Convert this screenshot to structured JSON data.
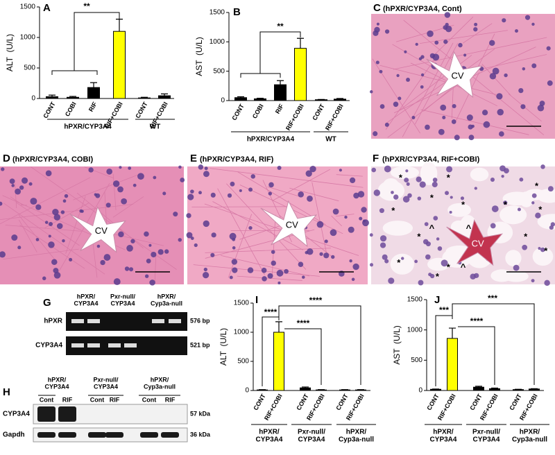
{
  "chart_data": [
    {
      "type": "bar",
      "panel": "A",
      "ylabel": "ALT  (U/L)",
      "ylim": [
        0,
        1500
      ],
      "yticks": [
        0,
        500,
        1000,
        1500
      ],
      "categories": [
        "CONT",
        "COBI",
        "RIF",
        "RIF+COBI",
        "CONT",
        "RIF+COBI"
      ],
      "values": [
        30,
        20,
        180,
        1100,
        10,
        45
      ],
      "errors": [
        25,
        15,
        80,
        200,
        10,
        30
      ],
      "colors": [
        "#000000",
        "#000000",
        "#000000",
        "#ffff00",
        "#000000",
        "#000000"
      ],
      "groups": [
        [
          "hPXR/CYP3A4"
        ],
        [
          "WT"
        ]
      ],
      "significance": [
        "**"
      ]
    },
    {
      "type": "bar",
      "panel": "B",
      "ylabel": "AST  (U/L)",
      "ylim": [
        0,
        1500
      ],
      "yticks": [
        0,
        500,
        1000,
        1500
      ],
      "categories": [
        "CONT",
        "COBI",
        "RIF",
        "RIF+COBI",
        "CONT",
        "RIF+COBI"
      ],
      "values": [
        50,
        30,
        270,
        890,
        15,
        25
      ],
      "errors": [
        15,
        10,
        70,
        170,
        5,
        10
      ],
      "colors": [
        "#000000",
        "#000000",
        "#000000",
        "#ffff00",
        "#000000",
        "#000000"
      ],
      "groups": [
        [
          "hPXR/CYP3A4"
        ],
        [
          "WT"
        ]
      ],
      "significance": [
        "**"
      ]
    },
    {
      "type": "bar",
      "panel": "I",
      "ylabel": "ALT  (U/L)",
      "ylim": [
        0,
        1500
      ],
      "yticks": [
        0,
        500,
        1000,
        1500
      ],
      "categories": [
        "CONT",
        "RIF+COBI",
        "CONT",
        "RIF+COBI",
        "CONT",
        "RIF+COBI"
      ],
      "values": [
        10,
        1000,
        45,
        10,
        10,
        10
      ],
      "errors": [
        5,
        180,
        15,
        5,
        5,
        5
      ],
      "colors": [
        "#000000",
        "#ffff00",
        "#000000",
        "#000000",
        "#000000",
        "#000000"
      ],
      "groups": [
        [
          "hPXR/",
          "CYP3A4"
        ],
        [
          "Pxr-null/",
          "CYP3A4"
        ],
        [
          "hPXR/",
          "Cyp3a-null"
        ]
      ],
      "significance": [
        "****",
        "****",
        "****"
      ]
    },
    {
      "type": "bar",
      "panel": "J",
      "ylabel": "AST  (U/L)",
      "ylim": [
        0,
        1500
      ],
      "yticks": [
        0,
        500,
        1000,
        1500
      ],
      "categories": [
        "CONT",
        "RIF+COBI",
        "CONT",
        "RIF+COBI",
        "CONT",
        "RIF+COBI"
      ],
      "values": [
        20,
        860,
        55,
        30,
        15,
        25
      ],
      "errors": [
        5,
        170,
        15,
        10,
        5,
        5
      ],
      "colors": [
        "#000000",
        "#ffff00",
        "#000000",
        "#000000",
        "#000000",
        "#000000"
      ],
      "groups": [
        [
          "hPXR/",
          "CYP3A4"
        ],
        [
          "Pxr-null/",
          "CYP3A4"
        ],
        [
          "hPXR/",
          "Cyp3a-null"
        ]
      ],
      "significance": [
        "***",
        "****",
        "***"
      ]
    }
  ],
  "histology": [
    {
      "panel": "C",
      "title": "(hPXR/CYP3A4, Cont)",
      "cv": "CV"
    },
    {
      "panel": "D",
      "title": "(hPXR/CYP3A4, COBI)",
      "cv": "CV"
    },
    {
      "panel": "E",
      "title": "(hPXR/CYP3A4, RIF)",
      "cv": "CV"
    },
    {
      "panel": "F",
      "title": "(hPXR/CYP3A4, RIF+COBI)",
      "cv": "CV",
      "symbols": [
        "*",
        "*",
        "*",
        "*",
        "*",
        "*",
        "*",
        "*",
        "*",
        "*",
        "*",
        "*",
        "*",
        "*",
        "^",
        "^",
        "^"
      ]
    }
  ],
  "gel": {
    "panel": "G",
    "groups": [
      [
        "hPXR/",
        "CYP3A4"
      ],
      [
        "Pxr-null/",
        "CYP3A4"
      ],
      [
        "hPXR/",
        "Cyp3a-null"
      ]
    ],
    "rows": [
      {
        "name": "hPXR",
        "size": "576 bp"
      },
      {
        "name": "CYP3A4",
        "size": "521 bp"
      }
    ]
  },
  "western": {
    "panel": "H",
    "groups": [
      [
        "hPXR/",
        "CYP3A4"
      ],
      [
        "Pxr-null/",
        "CYP3A4"
      ],
      [
        "hPXR/",
        "Cyp3a-null"
      ]
    ],
    "lanes": [
      "Cont",
      "RIF",
      "Cont",
      "RIF",
      "Cont",
      "RIF"
    ],
    "rows": [
      {
        "name": "CYP3A4",
        "size": "57 kDa"
      },
      {
        "name": "Gapdh",
        "size": "36 kDa"
      }
    ]
  }
}
